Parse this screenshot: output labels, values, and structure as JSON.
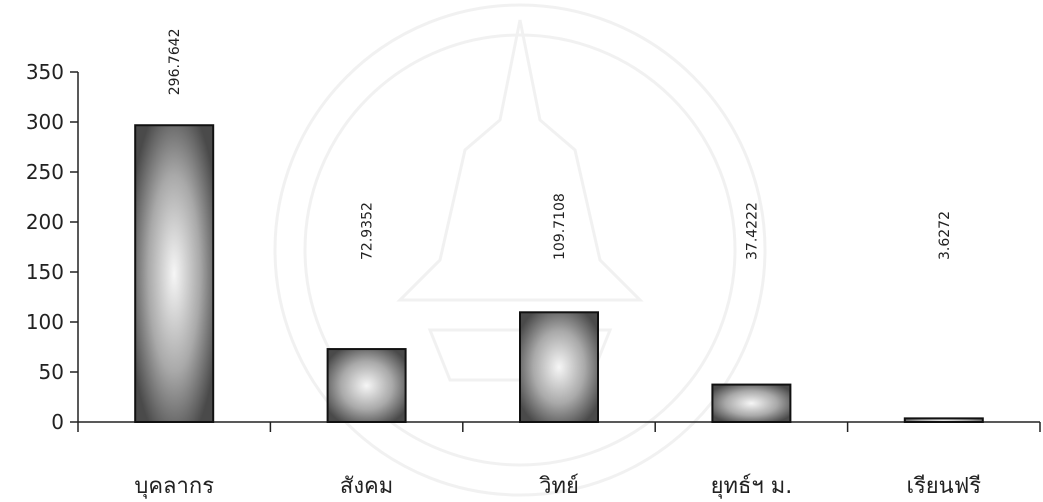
{
  "chart_data": {
    "type": "bar",
    "categories": [
      "บุคลากร",
      "สังคม",
      "วิทย์",
      "ยุทธ์ฯ ม.",
      "เรียนฟรี"
    ],
    "values": [
      296.7642,
      72.9352,
      109.7108,
      37.4222,
      3.6272
    ],
    "data_labels": [
      "296.7642",
      "72.9352",
      "109.7108",
      "37.4222",
      "3.6272"
    ],
    "y_ticks": [
      "0",
      "50",
      "100",
      "150",
      "200",
      "250",
      "300",
      "350"
    ],
    "ylim": [
      0,
      350
    ],
    "title": "",
    "xlabel": "",
    "ylabel": "",
    "grid": false,
    "legend": "none"
  },
  "colors": {
    "bar_dark": "#4a4a4a",
    "bar_light": "#f4f4f4",
    "bar_stroke": "#111111",
    "axis": "#222222",
    "watermark": "#e9e9e9"
  }
}
